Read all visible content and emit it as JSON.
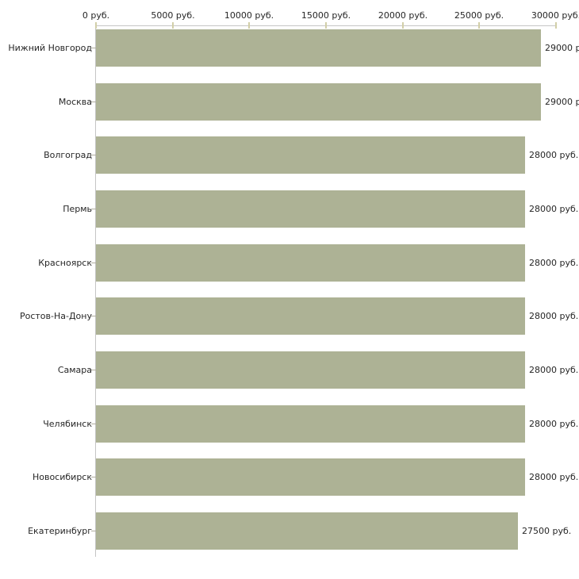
{
  "chart_data": {
    "type": "bar",
    "orientation": "horizontal",
    "title": "",
    "xlabel": "",
    "ylabel": "",
    "xlim": [
      0,
      30000
    ],
    "axis_position": "top",
    "grid": false,
    "legend": false,
    "x_tick_values": [
      0,
      5000,
      10000,
      15000,
      20000,
      25000,
      30000
    ],
    "x_tick_labels": [
      "0 руб.",
      "5000 руб.",
      "10000 руб.",
      "15000 руб.",
      "20000 руб.",
      "25000 руб.",
      "30000 руб."
    ],
    "categories": [
      "Нижний Новгород",
      "Москва",
      "Волгоград",
      "Пермь",
      "Красноярск",
      "Ростов-На-Дону",
      "Самара",
      "Челябинск",
      "Новосибирск",
      "Екатеринбург"
    ],
    "values": [
      29000,
      29000,
      28000,
      28000,
      28000,
      28000,
      28000,
      28000,
      28000,
      27500
    ],
    "rows": [
      {
        "category": "Нижний Новгород",
        "value": 29000,
        "value_label": "29000 р"
      },
      {
        "category": "Москва",
        "value": 29000,
        "value_label": "29000 р"
      },
      {
        "category": "Волгоград",
        "value": 28000,
        "value_label": "28000 руб."
      },
      {
        "category": "Пермь",
        "value": 28000,
        "value_label": "28000 руб."
      },
      {
        "category": "Красноярск",
        "value": 28000,
        "value_label": "28000 руб."
      },
      {
        "category": "Ростов-На-Дону",
        "value": 28000,
        "value_label": "28000 руб."
      },
      {
        "category": "Самара",
        "value": 28000,
        "value_label": "28000 руб."
      },
      {
        "category": "Челябинск",
        "value": 28000,
        "value_label": "28000 руб."
      },
      {
        "category": "Новосибирск",
        "value": 28000,
        "value_label": "28000 руб."
      },
      {
        "category": "Екатеринбург",
        "value": 27500,
        "value_label": "27500 руб."
      }
    ],
    "colors": {
      "bar": "#adb295",
      "axis_line": "#c5c5c5",
      "axis_tick": "#d2cfa8",
      "category_tick": "#b0aea0",
      "text": "#262626",
      "background": "#ffffff"
    }
  }
}
